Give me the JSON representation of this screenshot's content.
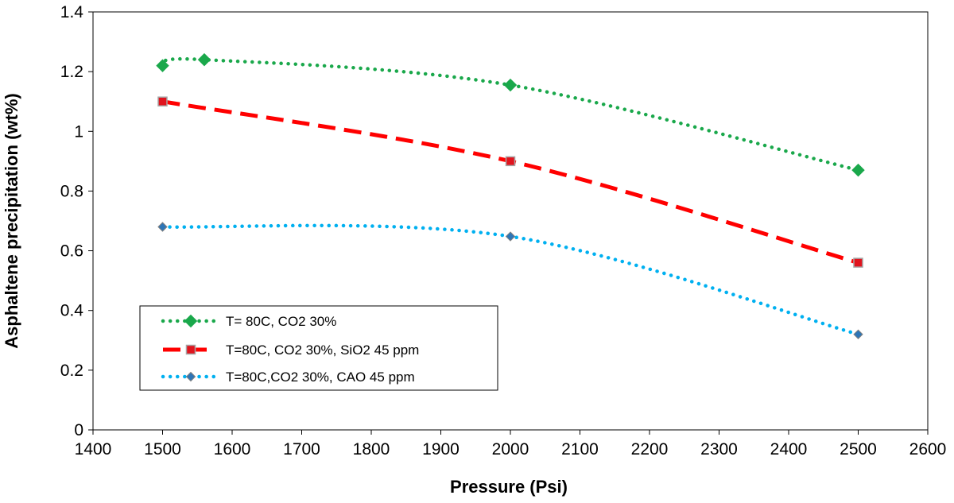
{
  "chart_data": {
    "type": "line",
    "title": "",
    "xlabel": "Pressure (Psi)",
    "ylabel": "Asphaltene precipitation (wt%)",
    "xlim": [
      1400,
      2600
    ],
    "ylim": [
      0,
      1.4
    ],
    "x_ticks": [
      "1400",
      "1500",
      "1600",
      "1700",
      "1800",
      "1900",
      "2000",
      "2100",
      "2200",
      "2300",
      "2400",
      "2500",
      "2600"
    ],
    "y_ticks": [
      "0",
      "0.2",
      "0.4",
      "0.6",
      "0.8",
      "1",
      "1.2",
      "1.4"
    ],
    "x_tick_values": [
      1400,
      1500,
      1600,
      1700,
      1800,
      1900,
      2000,
      2100,
      2200,
      2300,
      2400,
      2500,
      2600
    ],
    "y_tick_values": [
      0,
      0.2,
      0.4,
      0.6,
      0.8,
      1.0,
      1.2,
      1.4
    ],
    "grid": false,
    "legend_position": "bottom-left",
    "series": [
      {
        "name": "T= 80C, CO2 30%",
        "color": "#1aa84b",
        "line_style": "dotted",
        "marker": "diamond",
        "marker_color": "#1aa84b",
        "x": [
          1500,
          1560,
          2000,
          2500
        ],
        "y": [
          1.22,
          1.24,
          1.155,
          0.87
        ]
      },
      {
        "name": "T=80C, CO2 30%, SiO2 45 ppm",
        "color": "#ff0000",
        "line_style": "dashed",
        "marker": "square",
        "marker_color": "#e0141e",
        "x": [
          1500,
          2000,
          2500
        ],
        "y": [
          1.1,
          0.9,
          0.56
        ]
      },
      {
        "name": "T=80C,CO2 30%, CAO 45 ppm",
        "color": "#00b0f0",
        "line_style": "dotted",
        "marker": "diamond",
        "marker_color": "#2e75b6",
        "x": [
          1500,
          2000,
          2500
        ],
        "y": [
          0.68,
          0.648,
          0.32
        ]
      }
    ]
  }
}
